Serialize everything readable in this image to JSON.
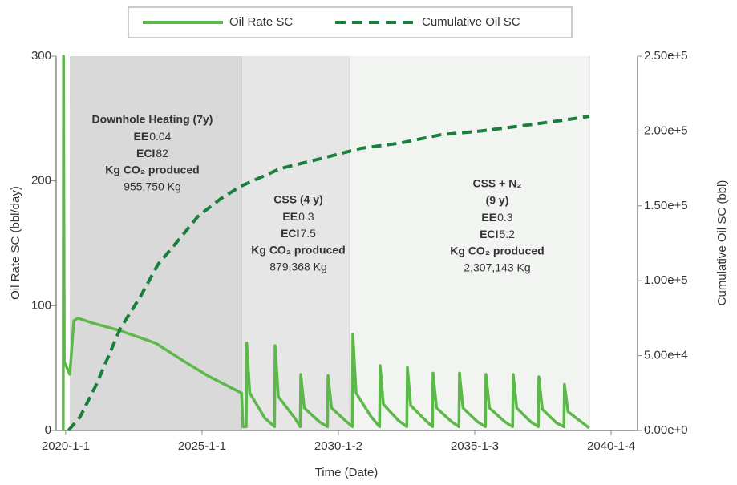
{
  "chart_data": {
    "type": "line",
    "legend_position": "top",
    "xlabel": "Time (Date)",
    "ylabel": "Oil Rate SC (bbl/day)",
    "y2label": "Cumulative Oil SC (bbl)",
    "xlim": [
      2019.65,
      2040.97
    ],
    "xticks": [
      {
        "value": 2020.0,
        "label": "2020-1-1"
      },
      {
        "value": 2025.0,
        "label": "2025-1-1"
      },
      {
        "value": 2030.0,
        "label": "2030-1-2"
      },
      {
        "value": 2035.0,
        "label": "2035-1-3"
      },
      {
        "value": 2040.0,
        "label": "2040-1-4"
      }
    ],
    "ylim": [
      0,
      300
    ],
    "yticks": [
      0,
      100,
      200,
      300
    ],
    "y2lim": [
      0,
      250000
    ],
    "y2ticks": [
      {
        "value": 0,
        "label": "0.00e+0"
      },
      {
        "value": 50000,
        "label": "5.00e+4"
      },
      {
        "value": 100000,
        "label": "1.00e+5"
      },
      {
        "value": 150000,
        "label": "1.50e+5"
      },
      {
        "value": 200000,
        "label": "2.00e+5"
      },
      {
        "value": 250000,
        "label": "2.50e+5"
      }
    ],
    "regions": [
      {
        "start": 2020.15,
        "end": 2026.47,
        "color": "#d9d9d9"
      },
      {
        "start": 2026.47,
        "end": 2030.4,
        "color": "#e6e6e6"
      },
      {
        "start": 2030.4,
        "end": 2039.2,
        "color": "#f2f4f2"
      }
    ],
    "ee_label": "EE",
    "eci_label": "ECI",
    "annotations": [
      {
        "title": [
          "Downhole Heating (7y)"
        ],
        "ee": 0.04,
        "eci": 82,
        "co2_label": "Kg CO₂ produced",
        "co2": "955,750 Kg"
      },
      {
        "title": [
          "CSS (4 y)"
        ],
        "ee": 0.3,
        "eci": 7.5,
        "co2_label": "Kg CO₂ produced",
        "co2": "879,368 Kg"
      },
      {
        "title": [
          "CSS + N₂",
          "(9 y)"
        ],
        "ee": 0.3,
        "eci": 5.2,
        "co2_label": "Kg CO₂ produced",
        "co2": "2,307,143 Kg"
      }
    ],
    "series": [
      {
        "name": "Oil Rate SC",
        "color": "#5cb848",
        "dash": false,
        "x": [
          2019.91,
          2019.92,
          2019.95,
          2020.15,
          2020.3,
          2020.45,
          2021.0,
          2022.0,
          2023.3,
          2024.3,
          2025.2,
          2026.45,
          2026.5,
          2026.62,
          2026.64,
          2026.75,
          2027.3,
          2027.66,
          2027.68,
          2027.8,
          2028.4,
          2028.6,
          2028.62,
          2028.75,
          2029.3,
          2029.6,
          2029.62,
          2029.75,
          2030.3,
          2030.51,
          2030.53,
          2030.65,
          2031.2,
          2031.51,
          2031.53,
          2031.65,
          2032.2,
          2032.51,
          2032.53,
          2032.65,
          2033.2,
          2033.45,
          2033.47,
          2033.6,
          2034.15,
          2034.42,
          2034.44,
          2034.57,
          2035.1,
          2035.39,
          2035.41,
          2035.54,
          2036.1,
          2036.39,
          2036.41,
          2036.54,
          2037.05,
          2037.33,
          2037.35,
          2037.48,
          2038.0,
          2038.27,
          2038.29,
          2038.42,
          2039.2
        ],
        "values": [
          0,
          300,
          55,
          45,
          88,
          90,
          86,
          80,
          70,
          56,
          44,
          30,
          3,
          3,
          70,
          30,
          10,
          3,
          68,
          27,
          10,
          3,
          45,
          18,
          7,
          3,
          44,
          18,
          7,
          3,
          77,
          30,
          11,
          3,
          52,
          21,
          8,
          3,
          51,
          20,
          8,
          3,
          46,
          18,
          7,
          3,
          46,
          18,
          7,
          3,
          45,
          18,
          7,
          3,
          45,
          18,
          7,
          3,
          43,
          17,
          6,
          3,
          37,
          15,
          2
        ]
      },
      {
        "name": "Cumulative Oil SC",
        "color": "#1a7f3c",
        "dash": true,
        "axis": "y2",
        "x": [
          2020.1,
          2020.53,
          2021.12,
          2022.0,
          2022.74,
          2023.38,
          2024.2,
          2024.85,
          2025.68,
          2026.41,
          2027.88,
          2029.35,
          2030.82,
          2032.29,
          2033.76,
          2035.24,
          2036.7,
          2038.18,
          2039.2
        ],
        "values": [
          0,
          9100,
          30500,
          68000,
          89400,
          110800,
          128500,
          143000,
          154700,
          163000,
          175000,
          181500,
          188400,
          192000,
          197500,
          200000,
          203400,
          207000,
          209800
        ]
      }
    ]
  }
}
